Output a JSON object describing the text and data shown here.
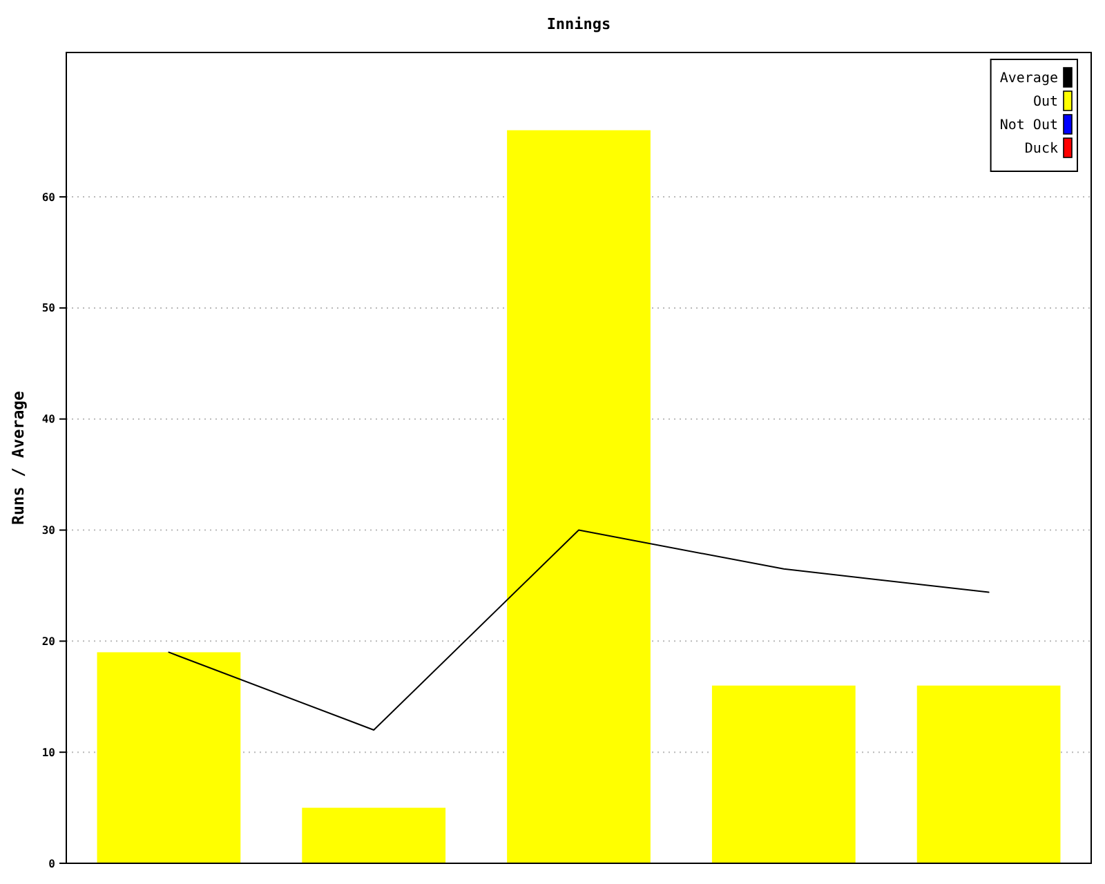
{
  "chart_data": {
    "type": "bar",
    "title": "Innings",
    "ylabel": "Runs / Average",
    "categories": [
      null,
      null,
      null,
      null,
      null
    ],
    "series": [
      {
        "name": "Average",
        "type": "line",
        "color": "#000000",
        "values": [
          19,
          12,
          30,
          26.5,
          24.4
        ]
      },
      {
        "name": "Out",
        "color": "#ffff00",
        "values": [
          19,
          5,
          66,
          16,
          16
        ]
      },
      {
        "name": "Not Out",
        "color": "#0000ff",
        "values": [
          null,
          null,
          null,
          null,
          null
        ]
      },
      {
        "name": "Duck",
        "color": "#ff0000",
        "values": [
          null,
          null,
          null,
          null,
          null
        ]
      }
    ],
    "stacked": true,
    "ylim": [
      0,
      73
    ],
    "yticks": [
      0,
      10,
      20,
      30,
      40,
      50,
      60
    ],
    "grid": "y",
    "legend": "top right",
    "tick_labels": "y"
  }
}
